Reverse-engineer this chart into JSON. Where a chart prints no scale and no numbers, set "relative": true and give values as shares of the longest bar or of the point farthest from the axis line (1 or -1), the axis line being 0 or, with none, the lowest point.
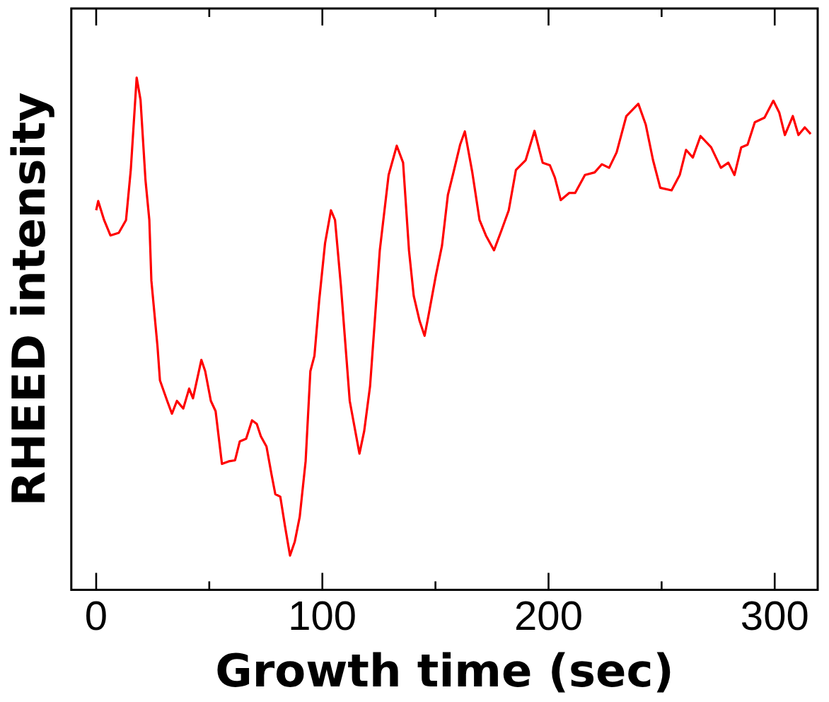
{
  "chart_data": {
    "type": "line",
    "relative": true,
    "xlabel": "Growth time (sec)",
    "ylabel": "RHEED intensity",
    "xlim": [
      -11,
      319
    ],
    "xticks": [
      0,
      {
        "value": 50,
        "label": null
      },
      100,
      {
        "value": 150,
        "label": null
      },
      200,
      {
        "value": 250,
        "label": null
      },
      300
    ],
    "grid": false,
    "legend": false,
    "marker": "none",
    "line_style": "solid",
    "series": [
      {
        "color": "#ff0000",
        "x": [
          0,
          0.9,
          3.5,
          6.3,
          10,
          13.2,
          15.3,
          17.9,
          19.6,
          21.8,
          23.5,
          24.4,
          27.1,
          28.2,
          31.4,
          33.5,
          35.7,
          38.5,
          41.1,
          42.8,
          46.5,
          48.2,
          50.7,
          52.8,
          55.6,
          58.6,
          61.4,
          63.5,
          66.3,
          68.9,
          71,
          72.8,
          75.3,
          77.5,
          79.2,
          81.4,
          83.5,
          85.7,
          87.8,
          90,
          92.6,
          94.7,
          96.5,
          98.6,
          101.2,
          103.8,
          105.6,
          108.2,
          109.9,
          112.1,
          116.4,
          118.5,
          121.1,
          123.2,
          125.4,
          129.3,
          132.9,
          135.7,
          138.3,
          140.4,
          143,
          145.2,
          146.9,
          150.2,
          152.9,
          155.5,
          157.7,
          160.9,
          163,
          166.3,
          169.5,
          172.3,
          175.9,
          179.2,
          182.4,
          185.6,
          189.9,
          193.8,
          197.4,
          200.6,
          202.8,
          205.4,
          209.2,
          211.8,
          216.1,
          220.4,
          223.6,
          226.8,
          230.1,
          234.4,
          239.7,
          243,
          246.2,
          249.4,
          254.4,
          258,
          260.8,
          263.8,
          267.2,
          271.9,
          276.2,
          279.5,
          282.2,
          285.2,
          288,
          291.2,
          295.5,
          299.4,
          302,
          304.5,
          308,
          310.5,
          313.3,
          315.9
        ],
        "values": [
          0.741,
          0.759,
          0.722,
          0.692,
          0.697,
          0.722,
          0.82,
          1.0,
          0.957,
          0.8,
          0.722,
          0.604,
          0.476,
          0.409,
          0.369,
          0.344,
          0.369,
          0.354,
          0.393,
          0.374,
          0.449,
          0.427,
          0.369,
          0.349,
          0.246,
          0.251,
          0.253,
          0.29,
          0.295,
          0.331,
          0.324,
          0.3,
          0.28,
          0.226,
          0.187,
          0.182,
          0.124,
          0.067,
          0.094,
          0.143,
          0.251,
          0.427,
          0.457,
          0.565,
          0.677,
          0.741,
          0.722,
          0.594,
          0.496,
          0.369,
          0.266,
          0.31,
          0.398,
          0.526,
          0.663,
          0.81,
          0.867,
          0.834,
          0.663,
          0.574,
          0.525,
          0.496,
          0.535,
          0.614,
          0.672,
          0.771,
          0.81,
          0.869,
          0.895,
          0.815,
          0.722,
          0.692,
          0.663,
          0.702,
          0.741,
          0.82,
          0.839,
          0.896,
          0.834,
          0.829,
          0.805,
          0.761,
          0.775,
          0.775,
          0.81,
          0.815,
          0.831,
          0.824,
          0.854,
          0.925,
          0.949,
          0.908,
          0.839,
          0.785,
          0.78,
          0.81,
          0.859,
          0.844,
          0.886,
          0.864,
          0.824,
          0.834,
          0.81,
          0.864,
          0.869,
          0.913,
          0.922,
          0.955,
          0.932,
          0.888,
          0.925,
          0.888,
          0.903,
          0.89
        ]
      }
    ]
  }
}
